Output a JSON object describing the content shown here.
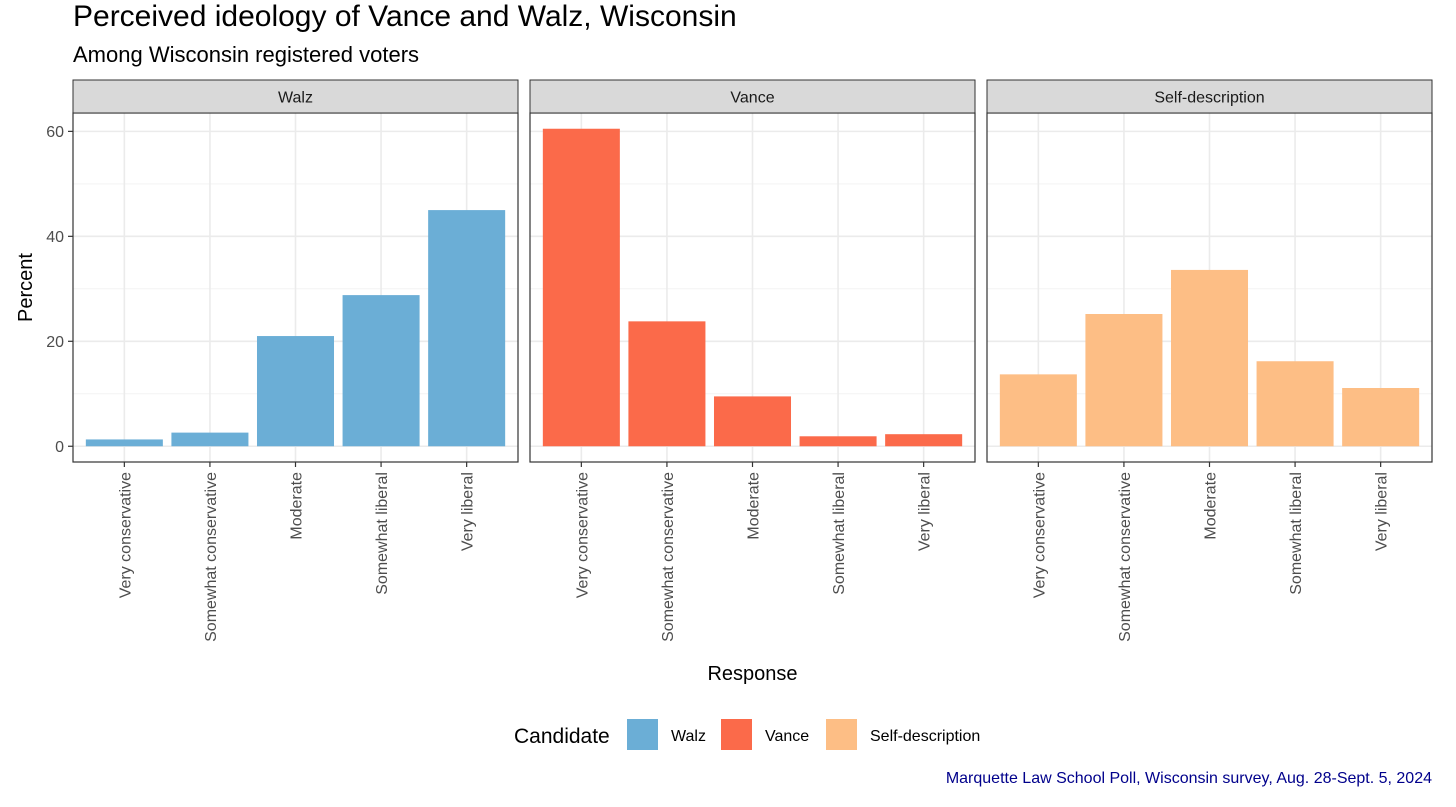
{
  "title": "Perceived ideology of Vance and Walz, Wisconsin",
  "subtitle": "Among Wisconsin registered voters",
  "caption": "Marquette Law School Poll, Wisconsin survey, Aug. 28-Sept. 5, 2024",
  "chart_data": {
    "type": "bar",
    "title": "Perceived ideology of Vance and Walz, Wisconsin",
    "subtitle": "Among Wisconsin registered voters",
    "xlabel": "Response",
    "ylabel": "Percent",
    "ylim": [
      -3,
      63.5
    ],
    "yticks": [
      0,
      20,
      40,
      60
    ],
    "grid": true,
    "legend_title": "Candidate",
    "legend_position": "bottom",
    "categories": [
      "Very conservative",
      "Somewhat conservative",
      "Moderate",
      "Somewhat liberal",
      "Very liberal"
    ],
    "series": [
      {
        "name": "Walz",
        "color": "#6baed6",
        "values": [
          1.3,
          2.6,
          21.0,
          28.8,
          45.0
        ]
      },
      {
        "name": "Vance",
        "color": "#fb6a4a",
        "values": [
          60.5,
          23.8,
          9.5,
          1.9,
          2.3
        ]
      },
      {
        "name": "Self-description",
        "color": "#fdbe85",
        "values": [
          13.7,
          25.2,
          33.6,
          16.2,
          11.1
        ]
      }
    ]
  }
}
